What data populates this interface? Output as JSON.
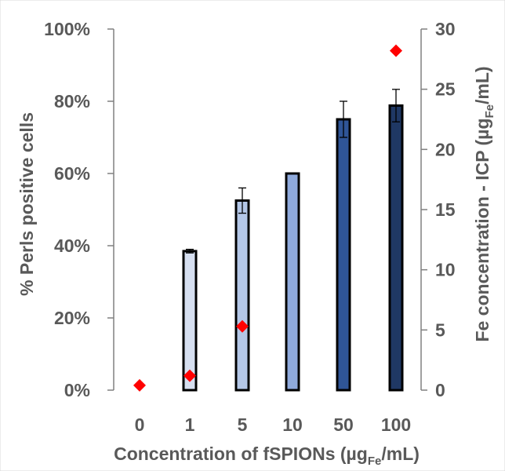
{
  "chart_data": {
    "type": "bar",
    "categories": [
      "0",
      "1",
      "5",
      "10",
      "50",
      "100"
    ],
    "series": [
      {
        "axis": "left",
        "kind": "bar",
        "values": [
          0,
          38.5,
          52.5,
          60,
          75,
          78.8
        ],
        "error": [
          0,
          0.5,
          3.5,
          0,
          5,
          4.5
        ],
        "colors": [
          "#ffffff",
          "#d6dff0",
          "#b4c7e7",
          "#8faadc",
          "#2f5597",
          "#1f3864"
        ]
      },
      {
        "axis": "right",
        "kind": "scatter",
        "values": [
          0.4,
          1.2,
          5.3,
          null,
          null,
          28.2
        ],
        "color": "#ff0000"
      }
    ],
    "ylim_left": [
      0,
      100
    ],
    "yticks_left": [
      "0%",
      "20%",
      "40%",
      "60%",
      "80%",
      "100%"
    ],
    "ylim_right": [
      0,
      30
    ],
    "yticks_right": [
      "0",
      "5",
      "10",
      "15",
      "20",
      "25",
      "30"
    ],
    "ylabel_left": "% Perls positive cells",
    "ylabel_right_main": "Fe concentration - ICP (µg",
    "ylabel_right_sub": "Fe",
    "ylabel_right_end": "/mL)",
    "xlabel_main": "Concentration of fSPIONs (µg",
    "xlabel_sub": "Fe",
    "xlabel_end": "/mL)",
    "grid": false,
    "legend": "none"
  }
}
